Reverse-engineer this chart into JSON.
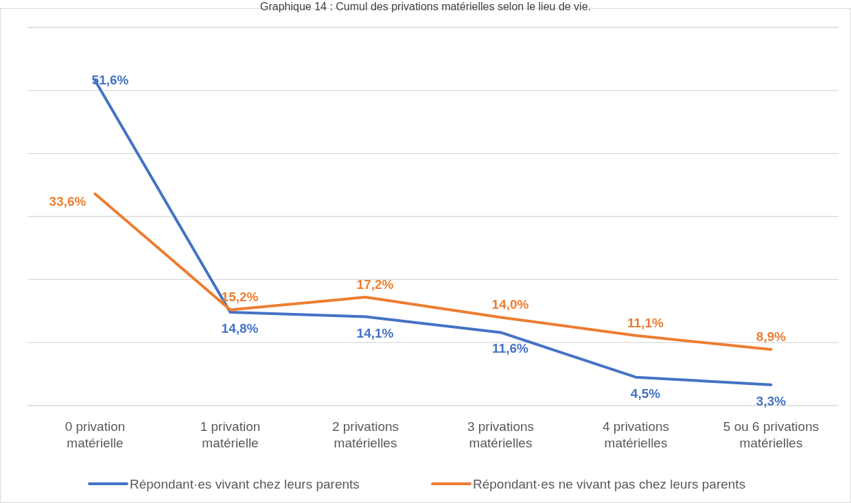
{
  "chart_data": {
    "type": "line",
    "title": "Graphique 14 : Cumul des privations matérielles selon le lieu de vie.",
    "categories": [
      "0 privation matérielle",
      "1 privation matérielle",
      "2 privations matérielles",
      "3 privations matérielles",
      "4 privations matérielles",
      "5 ou 6 privations matérielles"
    ],
    "series": [
      {
        "name": "Répondant·es vivant chez leurs parents",
        "color": "#4472c4",
        "values": [
          51.6,
          14.8,
          14.1,
          11.6,
          4.5,
          3.3
        ],
        "value_labels": [
          "51,6%",
          "14,8%",
          "14,1%",
          "11,6%",
          "4,5%",
          "3,3%"
        ]
      },
      {
        "name": "Répondant·es ne vivant pas chez leurs parents",
        "color": "#ed7d31",
        "values": [
          33.6,
          15.2,
          17.2,
          14.0,
          11.1,
          8.9
        ],
        "value_labels": [
          "33,6%",
          "15,2%",
          "17,2%",
          "14,0%",
          "11,1%",
          "8,9%"
        ]
      }
    ],
    "ylim": [
      0,
      60
    ],
    "yticks": [
      {
        "value": 0,
        "label": null
      },
      {
        "value": 10,
        "label": null
      },
      {
        "value": 20,
        "label": null
      },
      {
        "value": 30,
        "label": null
      },
      {
        "value": 40,
        "label": null
      },
      {
        "value": 50,
        "label": null
      },
      {
        "value": 60,
        "label": null
      }
    ],
    "grid": "y",
    "legend": "bottom",
    "marker": "none",
    "line_style": "solid"
  }
}
